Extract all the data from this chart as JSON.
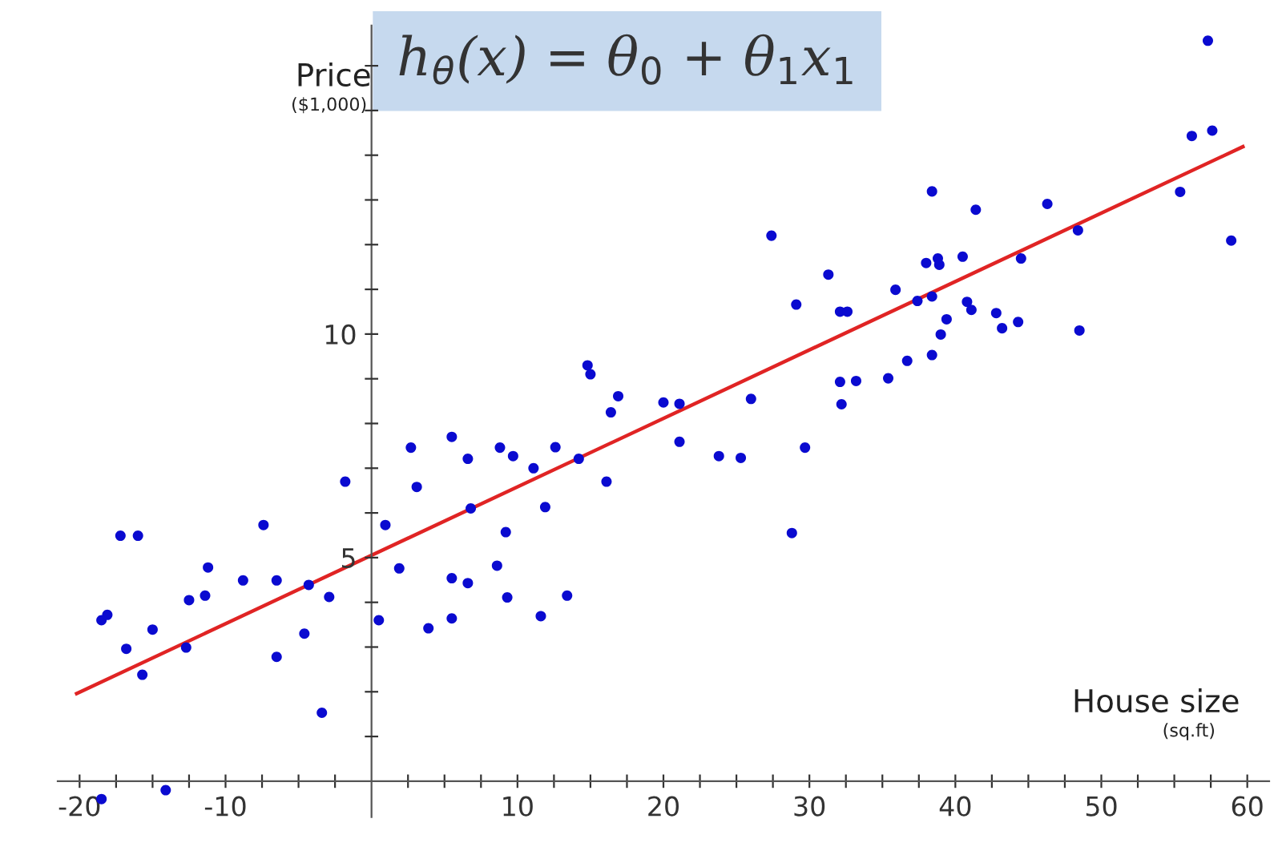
{
  "chart_data": {
    "type": "scatter",
    "title": "h$_{θ}$(x) = θ$_{0}$ + θ$_{1}$x$_{1}$",
    "xlabel": "House size",
    "ylabel": "Price",
    "annotations": [
      "($1,000)",
      "(sq.ft)"
    ],
    "series": [
      {
        "color": "#0a0ad0",
        "marker": "circle",
        "x": [
          -18.5,
          -18.1,
          -17.2,
          -16.0,
          -16.8,
          -15.0,
          -15.7,
          -12.5,
          -11.4,
          -11.2,
          -12.7,
          -8.8,
          -7.4,
          -6.5,
          -6.5,
          -4.6,
          -4.3,
          -2.9,
          -3.4,
          -1.8,
          0.5,
          0.95,
          1.9,
          2.7,
          3.1,
          3.9,
          -18.5,
          -14.1,
          27.4,
          31.3,
          29.1,
          14.8,
          15.0,
          16.9,
          16.4,
          20.0,
          21.1,
          26.0,
          21.1,
          23.8,
          25.3,
          29.7,
          28.8,
          5.5,
          6.6,
          8.8,
          9.7,
          11.1,
          12.6,
          14.2,
          16.1,
          11.9,
          6.8,
          9.2,
          8.6,
          5.5,
          6.6,
          9.3,
          13.4,
          11.6,
          5.5,
          57.3,
          56.2,
          57.6,
          55.4,
          58.9,
          38.4,
          41.4,
          46.3,
          48.4,
          44.5,
          38.0,
          38.8,
          38.9,
          40.5,
          35.9,
          37.4,
          38.4,
          40.8,
          41.1,
          39.4,
          39.0,
          42.8,
          43.2,
          44.3,
          48.5,
          38.4,
          36.7,
          35.4,
          33.2,
          32.1,
          32.2,
          32.1,
          32.6
        ],
        "values": [
          3.6,
          3.72,
          5.49,
          5.49,
          2.96,
          3.39,
          2.38,
          4.05,
          4.15,
          4.78,
          2.99,
          4.49,
          5.73,
          4.49,
          2.78,
          3.3,
          4.39,
          4.12,
          1.53,
          6.7,
          3.6,
          5.73,
          4.76,
          7.46,
          6.58,
          3.42,
          -0.4,
          -0.2,
          12.2,
          11.33,
          10.66,
          9.3,
          9.1,
          8.61,
          8.25,
          8.47,
          8.44,
          8.55,
          7.59,
          7.27,
          7.23,
          7.46,
          5.55,
          7.7,
          7.21,
          7.46,
          7.27,
          7.0,
          7.47,
          7.21,
          6.7,
          6.13,
          6.1,
          5.57,
          4.82,
          4.54,
          4.43,
          4.11,
          4.15,
          3.69,
          3.64,
          16.56,
          14.43,
          14.55,
          13.18,
          12.09,
          13.19,
          12.78,
          12.91,
          12.32,
          11.69,
          11.59,
          11.69,
          11.55,
          11.73,
          10.99,
          10.74,
          10.84,
          10.72,
          10.54,
          10.33,
          9.99,
          10.47,
          10.13,
          10.27,
          10.08,
          9.53,
          9.4,
          9.01,
          8.95,
          8.93,
          8.43,
          10.5,
          10.5
        ]
      },
      {
        "type": "line",
        "color": "#e02424",
        "line_style": "solid",
        "marker": "none",
        "x": [
          -20.2,
          59.7
        ],
        "values": [
          1.96,
          14.19
        ]
      }
    ],
    "xlim": [
      -21.5,
      61.5
    ],
    "ylim": [
      -0.8,
      16.9
    ],
    "xticks": [
      -20,
      {
        "value": -17.5,
        "label": null
      },
      {
        "value": -15,
        "label": null
      },
      {
        "value": -12.5,
        "label": null
      },
      -10,
      {
        "value": -7.5,
        "label": null
      },
      {
        "value": -5,
        "label": null
      },
      {
        "value": -2.5,
        "label": null
      },
      {
        "value": 2.5,
        "label": null
      },
      {
        "value": 5,
        "label": null
      },
      {
        "value": 7.5,
        "label": null
      },
      10,
      {
        "value": 12.5,
        "label": null
      },
      {
        "value": 15,
        "label": null
      },
      {
        "value": 17.5,
        "label": null
      },
      20,
      {
        "value": 22.5,
        "label": null
      },
      {
        "value": 25,
        "label": null
      },
      {
        "value": 27.5,
        "label": null
      },
      30,
      {
        "value": 32.5,
        "label": null
      },
      {
        "value": 35,
        "label": null
      },
      {
        "value": 37.5,
        "label": null
      },
      40,
      {
        "value": 42.5,
        "label": null
      },
      {
        "value": 45,
        "label": null
      },
      {
        "value": 47.5,
        "label": null
      },
      50,
      {
        "value": 52.5,
        "label": null
      },
      {
        "value": 55,
        "label": null
      },
      {
        "value": 57.5,
        "label": null
      },
      60
    ],
    "yticks": [
      {
        "value": 1,
        "label": null
      },
      {
        "value": 2,
        "label": null
      },
      {
        "value": 3,
        "label": null
      },
      {
        "value": 4,
        "label": null
      },
      5,
      {
        "value": 6,
        "label": null
      },
      {
        "value": 7,
        "label": null
      },
      {
        "value": 8,
        "label": null
      },
      {
        "value": 9,
        "label": null
      },
      10,
      {
        "value": 11,
        "label": null
      },
      {
        "value": 12,
        "label": null
      },
      {
        "value": 13,
        "label": null
      },
      {
        "value": 14,
        "label": null
      },
      {
        "value": 15,
        "label": null
      },
      {
        "value": 16,
        "label": null
      }
    ],
    "grid": false,
    "legend": false
  }
}
